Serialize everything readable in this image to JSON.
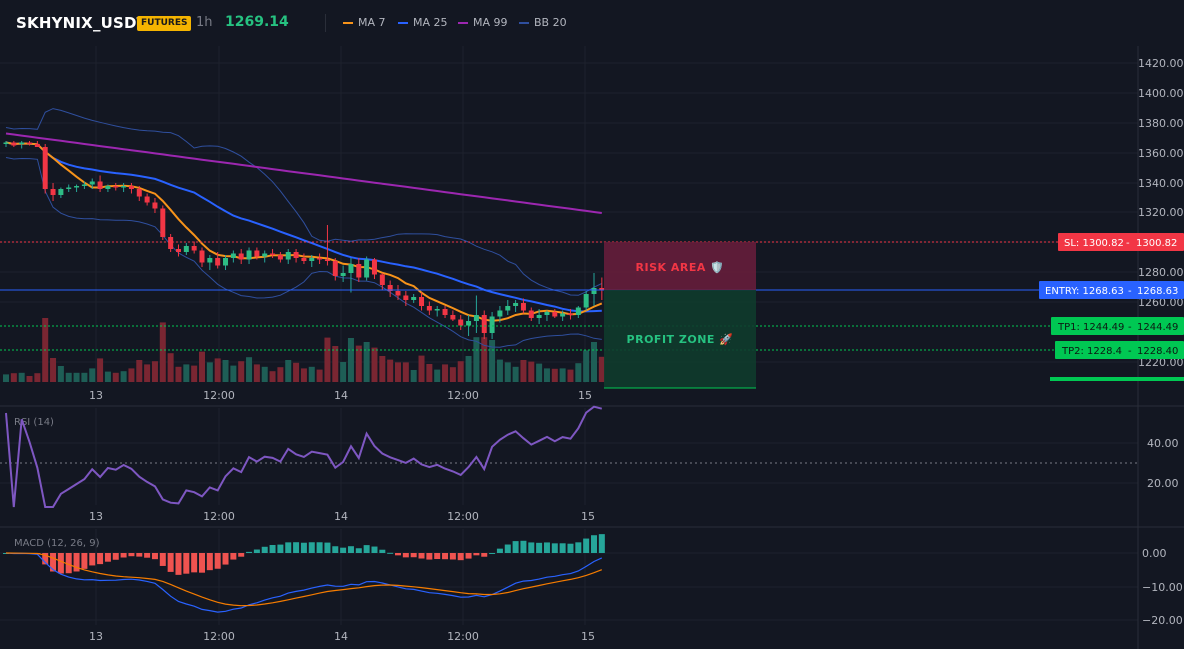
{
  "header": {
    "symbol": "SKHYNIX_USDT",
    "badge": "FUTURES",
    "timeframe": "1h",
    "last_price": "1269.14",
    "legend": [
      {
        "label": "MA 7",
        "color": "#f7931a"
      },
      {
        "label": "MA 25",
        "color": "#2962ff"
      },
      {
        "label": "MA 99",
        "color": "#9c27b0"
      },
      {
        "label": "BB 20",
        "color": "#2f4f9e"
      }
    ]
  },
  "price_axis": [
    "1420.00",
    "1400.00",
    "1380.00",
    "1360.00",
    "1340.00",
    "1320.00",
    "1280.00",
    "1260.00",
    "1220.00"
  ],
  "time_axis": [
    "13",
    "12:00",
    "14",
    "12:00",
    "15"
  ],
  "levels": {
    "sl": {
      "label": "SL: 1300.82",
      "value": "1300.82",
      "color": "#f23645"
    },
    "entry": {
      "label": "ENTRY: 1268.63",
      "value": "1268.63",
      "color": "#2962ff"
    },
    "tp1": {
      "label": "TP1: 1244.49",
      "value": "1244.49",
      "color": "#00c853"
    },
    "tp2": {
      "label": "TP2: 1228.4",
      "value": "1228.40",
      "color": "#00c853"
    }
  },
  "zones": {
    "risk": "RISK AREA 🛡️",
    "profit": "PROFIT ZONE 🚀"
  },
  "rsi": {
    "title": "RSI (14)",
    "axis": [
      "40.00",
      "20.00"
    ]
  },
  "macd": {
    "title": "MACD (12, 26, 9)",
    "axis": [
      "0.00",
      "−10.00",
      "−20.00"
    ]
  },
  "chart_data": {
    "type": "candlestick",
    "ma_periods": [
      7,
      25,
      99
    ],
    "bb_period": 20,
    "levels": {
      "sl": 1300.82,
      "entry": 1268.63,
      "tp1": 1244.49,
      "tp2": 1228.4
    },
    "candles": [
      {
        "o": 1366,
        "h": 1368,
        "l": 1364,
        "c": 1367
      },
      {
        "o": 1367,
        "h": 1368,
        "l": 1364,
        "c": 1365
      },
      {
        "o": 1366,
        "h": 1368,
        "l": 1363,
        "c": 1367
      },
      {
        "o": 1367,
        "h": 1368,
        "l": 1365,
        "c": 1366
      },
      {
        "o": 1366,
        "h": 1368,
        "l": 1364,
        "c": 1364
      },
      {
        "o": 1364,
        "h": 1366,
        "l": 1333,
        "c": 1336
      },
      {
        "o": 1336,
        "h": 1340,
        "l": 1328,
        "c": 1332
      },
      {
        "o": 1332,
        "h": 1337,
        "l": 1330,
        "c": 1336
      },
      {
        "o": 1336,
        "h": 1339,
        "l": 1334,
        "c": 1337
      },
      {
        "o": 1337,
        "h": 1339,
        "l": 1334,
        "c": 1338
      },
      {
        "o": 1338,
        "h": 1341,
        "l": 1336,
        "c": 1339
      },
      {
        "o": 1339,
        "h": 1343,
        "l": 1336,
        "c": 1341
      },
      {
        "o": 1341,
        "h": 1345,
        "l": 1334,
        "c": 1336
      },
      {
        "o": 1336,
        "h": 1339,
        "l": 1334,
        "c": 1338
      },
      {
        "o": 1338,
        "h": 1340,
        "l": 1335,
        "c": 1337
      },
      {
        "o": 1337,
        "h": 1340,
        "l": 1334,
        "c": 1338
      },
      {
        "o": 1338,
        "h": 1340,
        "l": 1333,
        "c": 1336
      },
      {
        "o": 1336,
        "h": 1338,
        "l": 1328,
        "c": 1331
      },
      {
        "o": 1331,
        "h": 1333,
        "l": 1325,
        "c": 1327
      },
      {
        "o": 1327,
        "h": 1330,
        "l": 1320,
        "c": 1323
      },
      {
        "o": 1323,
        "h": 1325,
        "l": 1302,
        "c": 1304
      },
      {
        "o": 1304,
        "h": 1306,
        "l": 1294,
        "c": 1296
      },
      {
        "o": 1296,
        "h": 1299,
        "l": 1291,
        "c": 1294
      },
      {
        "o": 1294,
        "h": 1300,
        "l": 1292,
        "c": 1298
      },
      {
        "o": 1298,
        "h": 1301,
        "l": 1293,
        "c": 1295
      },
      {
        "o": 1295,
        "h": 1297,
        "l": 1284,
        "c": 1287
      },
      {
        "o": 1287,
        "h": 1292,
        "l": 1282,
        "c": 1290
      },
      {
        "o": 1290,
        "h": 1294,
        "l": 1283,
        "c": 1285
      },
      {
        "o": 1285,
        "h": 1292,
        "l": 1282,
        "c": 1290
      },
      {
        "o": 1290,
        "h": 1295,
        "l": 1287,
        "c": 1293
      },
      {
        "o": 1293,
        "h": 1296,
        "l": 1286,
        "c": 1289
      },
      {
        "o": 1289,
        "h": 1297,
        "l": 1286,
        "c": 1295
      },
      {
        "o": 1295,
        "h": 1297,
        "l": 1289,
        "c": 1291
      },
      {
        "o": 1291,
        "h": 1295,
        "l": 1287,
        "c": 1293
      },
      {
        "o": 1293,
        "h": 1296,
        "l": 1290,
        "c": 1292
      },
      {
        "o": 1292,
        "h": 1294,
        "l": 1287,
        "c": 1289
      },
      {
        "o": 1289,
        "h": 1296,
        "l": 1286,
        "c": 1294
      },
      {
        "o": 1294,
        "h": 1296,
        "l": 1287,
        "c": 1290
      },
      {
        "o": 1290,
        "h": 1293,
        "l": 1286,
        "c": 1288
      },
      {
        "o": 1288,
        "h": 1292,
        "l": 1284,
        "c": 1290
      },
      {
        "o": 1290,
        "h": 1293,
        "l": 1286,
        "c": 1289
      },
      {
        "o": 1289,
        "h": 1312,
        "l": 1285,
        "c": 1288
      },
      {
        "o": 1288,
        "h": 1290,
        "l": 1275,
        "c": 1278
      },
      {
        "o": 1278,
        "h": 1285,
        "l": 1274,
        "c": 1280
      },
      {
        "o": 1280,
        "h": 1290,
        "l": 1267,
        "c": 1286
      },
      {
        "o": 1286,
        "h": 1290,
        "l": 1274,
        "c": 1277
      },
      {
        "o": 1277,
        "h": 1291,
        "l": 1275,
        "c": 1289
      },
      {
        "o": 1289,
        "h": 1290,
        "l": 1276,
        "c": 1279
      },
      {
        "o": 1279,
        "h": 1280,
        "l": 1269,
        "c": 1272
      },
      {
        "o": 1272,
        "h": 1275,
        "l": 1264,
        "c": 1268
      },
      {
        "o": 1268,
        "h": 1272,
        "l": 1262,
        "c": 1265
      },
      {
        "o": 1265,
        "h": 1268,
        "l": 1258,
        "c": 1262
      },
      {
        "o": 1262,
        "h": 1266,
        "l": 1260,
        "c": 1264
      },
      {
        "o": 1264,
        "h": 1267,
        "l": 1255,
        "c": 1258
      },
      {
        "o": 1258,
        "h": 1261,
        "l": 1252,
        "c": 1255
      },
      {
        "o": 1255,
        "h": 1258,
        "l": 1251,
        "c": 1256
      },
      {
        "o": 1256,
        "h": 1258,
        "l": 1250,
        "c": 1252
      },
      {
        "o": 1252,
        "h": 1255,
        "l": 1248,
        "c": 1249
      },
      {
        "o": 1249,
        "h": 1252,
        "l": 1242,
        "c": 1245
      },
      {
        "o": 1245,
        "h": 1252,
        "l": 1238,
        "c": 1248
      },
      {
        "o": 1248,
        "h": 1265,
        "l": 1240,
        "c": 1252
      },
      {
        "o": 1252,
        "h": 1255,
        "l": 1236,
        "c": 1240
      },
      {
        "o": 1240,
        "h": 1254,
        "l": 1236,
        "c": 1251
      },
      {
        "o": 1251,
        "h": 1258,
        "l": 1247,
        "c": 1255
      },
      {
        "o": 1255,
        "h": 1262,
        "l": 1252,
        "c": 1258
      },
      {
        "o": 1258,
        "h": 1262,
        "l": 1254,
        "c": 1260
      },
      {
        "o": 1260,
        "h": 1263,
        "l": 1253,
        "c": 1255
      },
      {
        "o": 1255,
        "h": 1257,
        "l": 1248,
        "c": 1250
      },
      {
        "o": 1250,
        "h": 1256,
        "l": 1246,
        "c": 1252
      },
      {
        "o": 1252,
        "h": 1255,
        "l": 1248,
        "c": 1254
      },
      {
        "o": 1254,
        "h": 1256,
        "l": 1250,
        "c": 1251
      },
      {
        "o": 1251,
        "h": 1255,
        "l": 1248,
        "c": 1253
      },
      {
        "o": 1253,
        "h": 1256,
        "l": 1249,
        "c": 1252
      },
      {
        "o": 1252,
        "h": 1258,
        "l": 1250,
        "c": 1257
      },
      {
        "o": 1257,
        "h": 1268,
        "l": 1255,
        "c": 1266
      },
      {
        "o": 1266,
        "h": 1280,
        "l": 1258,
        "c": 1270
      },
      {
        "o": 1270,
        "h": 1277,
        "l": 1262,
        "c": 1269
      }
    ]
  }
}
